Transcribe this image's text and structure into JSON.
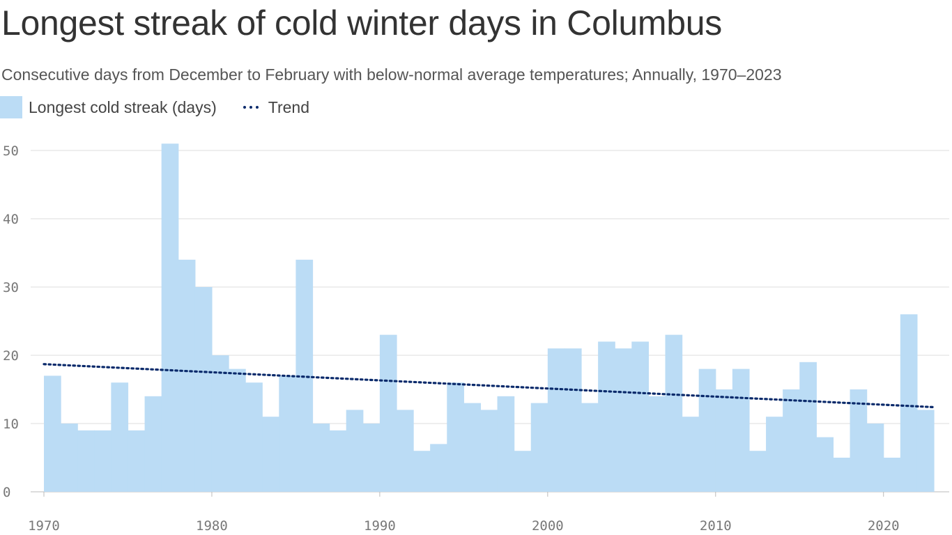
{
  "title": "Longest streak of cold winter days in Columbus",
  "subtitle": "Consecutive days from December to February with below-normal average temperatures; Annually, 1970–2023",
  "legend": {
    "bar_label": "Longest cold streak (days)",
    "trend_label": "Trend"
  },
  "colors": {
    "bar": "#bbdcf5",
    "trend": "#0a2a6b",
    "grid": "#dddddd",
    "axis_text": "#777777"
  },
  "chart_data": {
    "type": "bar",
    "x": [
      1970,
      1971,
      1972,
      1973,
      1974,
      1975,
      1976,
      1977,
      1978,
      1979,
      1980,
      1981,
      1982,
      1983,
      1984,
      1985,
      1986,
      1987,
      1988,
      1989,
      1990,
      1991,
      1992,
      1993,
      1994,
      1995,
      1996,
      1997,
      1998,
      1999,
      2000,
      2001,
      2002,
      2003,
      2004,
      2005,
      2006,
      2007,
      2008,
      2009,
      2010,
      2011,
      2012,
      2013,
      2014,
      2015,
      2016,
      2017,
      2018,
      2019,
      2020,
      2021,
      2022
    ],
    "series": [
      {
        "name": "Longest cold streak (days)",
        "values": [
          17,
          10,
          9,
          9,
          16,
          9,
          14,
          51,
          34,
          30,
          20,
          18,
          16,
          11,
          17,
          34,
          10,
          9,
          12,
          10,
          23,
          12,
          6,
          7,
          16,
          13,
          12,
          14,
          6,
          13,
          21,
          21,
          13,
          22,
          21,
          22,
          14,
          23,
          11,
          18,
          15,
          18,
          6,
          11,
          15,
          19,
          8,
          5,
          15,
          10,
          5,
          26,
          12
        ]
      }
    ],
    "trend": {
      "name": "Trend",
      "start": [
        1970,
        18.7
      ],
      "end": [
        2023,
        12.4
      ]
    },
    "ylim": [
      0,
      50
    ],
    "y_ticks": [
      0,
      10,
      20,
      30,
      40,
      50
    ],
    "x_ticks": [
      1970,
      1980,
      1990,
      2000,
      2010,
      2020
    ],
    "xlim": [
      1970,
      2023
    ],
    "grid": true,
    "legend_position": "top-left",
    "xlabel": "",
    "ylabel": ""
  }
}
